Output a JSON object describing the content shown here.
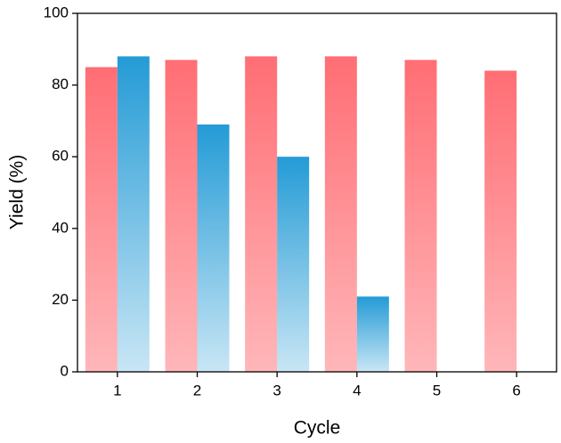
{
  "chart_data": {
    "type": "bar",
    "x_label": "Cycle",
    "y_label": "Yield (%)",
    "categories": [
      "1",
      "2",
      "3",
      "4",
      "5",
      "6"
    ],
    "series": [
      {
        "color": "#ff6e74",
        "values": [
          85,
          87,
          88,
          88,
          87,
          84
        ]
      },
      {
        "color": "#249bd6",
        "values": [
          88,
          69,
          60,
          21,
          null,
          null
        ]
      }
    ],
    "ylim": [
      0,
      100
    ],
    "yticks": [
      0,
      20,
      40,
      60,
      80,
      100
    ]
  }
}
